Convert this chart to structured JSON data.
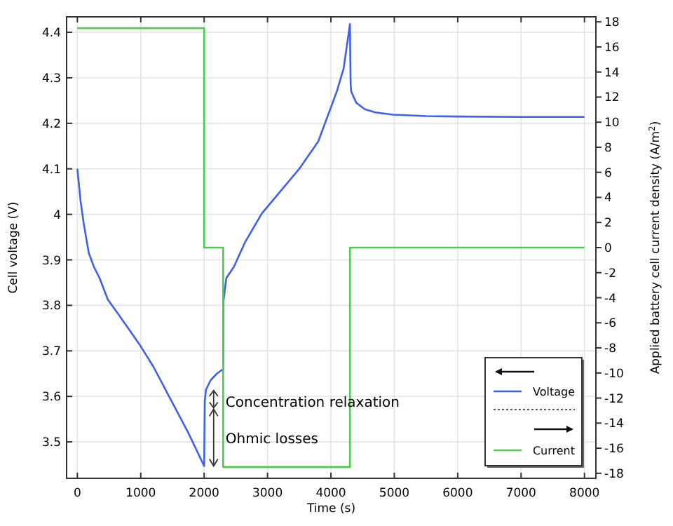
{
  "chart_data": {
    "type": "line",
    "xlabel": "Time (s)",
    "ylabel": "Cell voltage (V)",
    "y2label": "Applied battery cell current density (A/m$^{2}$)",
    "xlim": [
      -170,
      8180
    ],
    "xticks": [
      0,
      1000,
      2000,
      3000,
      4000,
      5000,
      6000,
      7000,
      8000
    ],
    "ylim": [
      3.42,
      4.434
    ],
    "yticks": [
      3.5,
      3.6,
      3.7,
      3.8,
      3.9,
      4,
      4.1,
      4.2,
      4.3,
      4.4
    ],
    "y2lim": [
      -18.4,
      18.4
    ],
    "y2ticks": [
      -18,
      -16,
      -14,
      -12,
      -10,
      -8,
      -6,
      -4,
      -2,
      0,
      2,
      4,
      6,
      8,
      10,
      12,
      14,
      16,
      18
    ],
    "grid": true,
    "legend": "bottom right",
    "line_style": "solid",
    "marker": "none",
    "series": [
      {
        "name": "Voltage",
        "color": "#3f5fee",
        "axis": "y",
        "x": [
          0,
          50,
          100,
          180,
          260,
          350,
          480,
          650,
          800,
          1000,
          1200,
          1500,
          1750,
          2000,
          2010,
          2030,
          2100,
          2200,
          2300,
          2305,
          2350,
          2470,
          2650,
          2910,
          3200,
          3500,
          3800,
          4093,
          4200,
          4300,
          4310,
          4320,
          4400,
          4535,
          4700,
          4980,
          5500,
          6000,
          7000,
          8000
        ],
        "values": [
          4.1,
          4.03,
          3.98,
          3.915,
          3.885,
          3.86,
          3.813,
          3.78,
          3.75,
          3.71,
          3.665,
          3.586,
          3.52,
          3.447,
          3.59,
          3.615,
          3.635,
          3.65,
          3.66,
          3.81,
          3.86,
          3.885,
          3.94,
          4.002,
          4.05,
          4.1,
          4.16,
          4.27,
          4.32,
          4.418,
          4.29,
          4.27,
          4.245,
          4.231,
          4.224,
          4.219,
          4.216,
          4.215,
          4.214,
          4.214
        ]
      },
      {
        "name": "Current",
        "color": "#4ccc4c",
        "axis": "y2",
        "x": [
          0,
          2000,
          2000,
          2300,
          2300,
          4300,
          4300,
          8000
        ],
        "values": [
          17.5,
          17.5,
          0,
          0,
          -17.5,
          -17.5,
          0,
          0
        ]
      }
    ],
    "annotations": [
      {
        "text": "Concentration relaxation",
        "x": 2250,
        "y": 3.59
      },
      {
        "text": "Ohmic losses",
        "x": 2250,
        "y": 3.51
      }
    ]
  }
}
